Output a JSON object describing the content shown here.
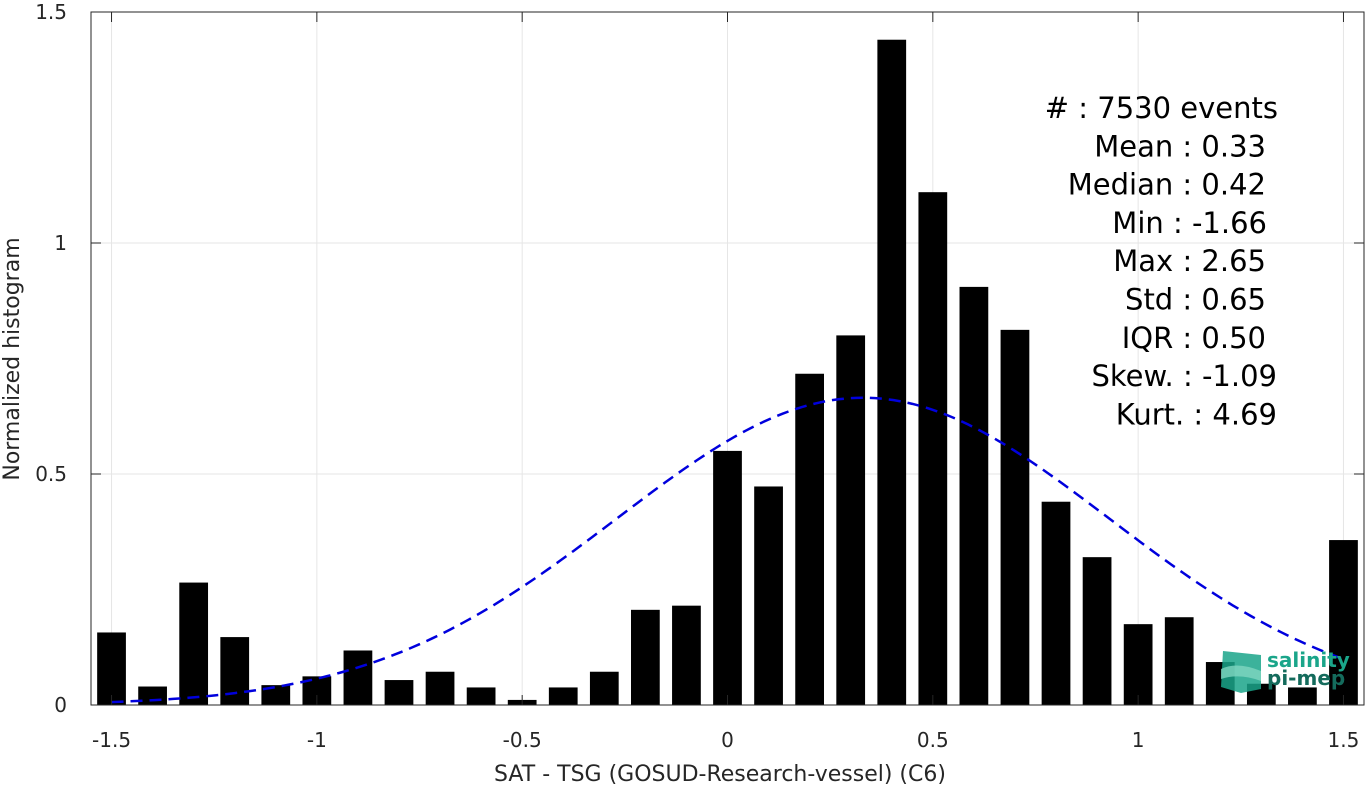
{
  "chart_data": {
    "type": "bar",
    "xlabel": "SAT - TSG (GOSUD-Research-vessel) (C6)",
    "ylabel": "Normalized histogram",
    "xlim": [
      -1.55,
      1.55
    ],
    "ylim": [
      0,
      1.5
    ],
    "grid": true,
    "x_ticks": [
      -1.5,
      -1,
      -0.5,
      0,
      0.5,
      1,
      1.5
    ],
    "x_tick_labels": [
      "-1.5",
      "-1",
      "-0.5",
      "0",
      "0.5",
      "1",
      "1.5"
    ],
    "y_ticks": [
      0,
      0.5,
      1,
      1.5
    ],
    "y_tick_labels": [
      "0",
      "0.5",
      "1",
      "1.5"
    ],
    "bar_width": 0.07,
    "bins": [
      -1.5,
      -1.4,
      -1.3,
      -1.2,
      -1.1,
      -1.0,
      -0.9,
      -0.8,
      -0.7,
      -0.6,
      -0.5,
      -0.4,
      -0.3,
      -0.2,
      -0.1,
      0.0,
      0.1,
      0.2,
      0.3,
      0.4,
      0.5,
      0.6,
      0.7,
      0.8,
      0.9,
      1.0,
      1.1,
      1.2,
      1.3,
      1.4,
      1.5
    ],
    "values": [
      0.157,
      0.04,
      0.265,
      0.147,
      0.043,
      0.062,
      0.118,
      0.054,
      0.072,
      0.038,
      0.011,
      0.038,
      0.072,
      0.206,
      0.215,
      0.55,
      0.473,
      0.717,
      0.8,
      1.44,
      1.11,
      0.905,
      0.812,
      0.44,
      0.32,
      0.175,
      0.19,
      0.093,
      0.046,
      0.038,
      0.357
    ],
    "bar_color": "#000000",
    "fit_curve": {
      "style": "dashed",
      "color": "#0000dd",
      "mean": 0.33,
      "std": 0.6,
      "amplitude": 0.665,
      "x_range": [
        -1.5,
        1.5
      ]
    },
    "stats_lines": [
      "#  : 7530 events",
      "Mean : 0.33",
      "Median : 0.42",
      "Min : -1.66",
      "Max : 2.65",
      "Std : 0.65",
      "IQR : 0.50",
      "Skew. : -1.09",
      "Kurt. : 4.69"
    ]
  },
  "logo": {
    "line1": "salinity",
    "line2": "pi-mep",
    "color": "#1aa58a"
  }
}
